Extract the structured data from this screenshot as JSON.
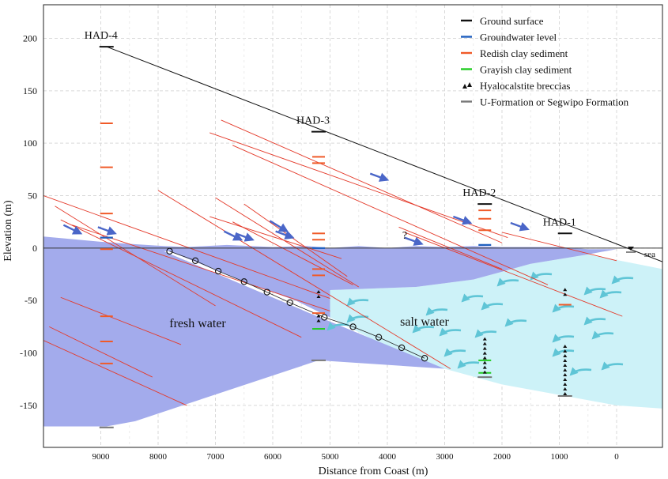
{
  "axes": {
    "x_label": "Distance from Coast (m)",
    "y_label": "Elevation (m)",
    "x_ticks": [
      9000,
      8000,
      7000,
      6000,
      5000,
      4000,
      3000,
      2000,
      1000,
      0
    ],
    "y_ticks": [
      200,
      150,
      100,
      50,
      0,
      -50,
      -100,
      -150
    ],
    "x_range": [
      10000,
      -800
    ],
    "y_range": [
      -190,
      232
    ]
  },
  "legend": {
    "items": [
      {
        "label": "Ground surface",
        "kind": "line",
        "color": "#111111"
      },
      {
        "label": "Groundwater level",
        "kind": "line",
        "color": "#1f5fbf"
      },
      {
        "label": "Redish clay sediment",
        "kind": "line",
        "color": "#f05a28"
      },
      {
        "label": "Grayish clay sediment",
        "kind": "line",
        "color": "#22cc22"
      },
      {
        "label": "Hyalocalstite breccias",
        "kind": "breccia",
        "color": "#111111"
      },
      {
        "label": "U-Formation or Segwipo Formation",
        "kind": "line",
        "color": "#777777"
      }
    ]
  },
  "colors": {
    "fresh_water": "#a3abec",
    "salt_water": "#cdf2f8",
    "ground": "#111111",
    "clay_red": "#f05a28",
    "clay_green": "#22cc22",
    "gw": "#1f5fbf",
    "formation": "#777777",
    "flow_arrow": "#4a66c8",
    "salt_arrow": "#5fc5d6",
    "red_line": "#e43a2a"
  },
  "wells": [
    {
      "name": "HAD-4",
      "x": 8900,
      "ground": 192,
      "bottom": -171,
      "red": [
        119,
        77,
        33,
        10,
        -1,
        -65,
        -89,
        -110
      ],
      "green": [],
      "gw": [
        10
      ],
      "breccia": []
    },
    {
      "name": "HAD-3",
      "x": 5200,
      "ground": 111,
      "bottom": -107,
      "red": [
        87,
        81,
        14,
        8,
        -20,
        -26,
        -62
      ],
      "green": [
        -77
      ],
      "gw": [
        0
      ],
      "breccia": [
        [
          -40,
          -48
        ],
        [
          -63,
          -69
        ]
      ]
    },
    {
      "name": "HAD-2",
      "x": 2300,
      "ground": 42,
      "bottom": -123,
      "red": [
        36,
        28,
        17
      ],
      "green": [
        -107,
        -119
      ],
      "gw": [
        3
      ],
      "breccia": [
        [
          -85,
          -120
        ]
      ]
    },
    {
      "name": "HAD-1",
      "x": 900,
      "ground": 14,
      "bottom": -141,
      "red": [
        -54
      ],
      "green": [],
      "gw": [],
      "breccia": [
        [
          -38,
          -47
        ],
        [
          -92,
          -138
        ]
      ]
    }
  ],
  "regions": {
    "fresh_label": "fresh water",
    "salt_label": "salt water",
    "sea_label": "sea",
    "question": "?"
  },
  "interface": [
    [
      7800,
      -3
    ],
    [
      7350,
      -12
    ],
    [
      6950,
      -22
    ],
    [
      6500,
      -32
    ],
    [
      6100,
      -42
    ],
    [
      5700,
      -52
    ],
    [
      5100,
      -66
    ],
    [
      4600,
      -75
    ],
    [
      4150,
      -85
    ],
    [
      3750,
      -95
    ],
    [
      3350,
      -105
    ]
  ],
  "fault_lines": [
    [
      [
        10000,
        50
      ],
      [
        5000,
        -48
      ]
    ],
    [
      [
        9800,
        40
      ],
      [
        7000,
        -55
      ]
    ],
    [
      [
        9700,
        27
      ],
      [
        5500,
        -85
      ]
    ],
    [
      [
        9500,
        22
      ],
      [
        5000,
        -60
      ]
    ],
    [
      [
        9700,
        -47
      ],
      [
        7600,
        -92
      ]
    ],
    [
      [
        9900,
        -75
      ],
      [
        8100,
        -123
      ]
    ],
    [
      [
        10000,
        -88
      ],
      [
        7500,
        -150
      ]
    ],
    [
      [
        8000,
        55
      ],
      [
        2900,
        -115
      ]
    ],
    [
      [
        7000,
        48
      ],
      [
        4500,
        -37
      ]
    ],
    [
      [
        6500,
        42
      ],
      [
        4700,
        -27
      ]
    ],
    [
      [
        6700,
        25
      ],
      [
        4600,
        -35
      ]
    ],
    [
      [
        7100,
        30
      ],
      [
        4800,
        -10
      ]
    ],
    [
      [
        7100,
        110
      ],
      [
        1900,
        10
      ]
    ],
    [
      [
        6900,
        122
      ],
      [
        2000,
        5
      ]
    ],
    [
      [
        6700,
        98
      ],
      [
        1200,
        -35
      ]
    ],
    [
      [
        3800,
        20
      ],
      [
        2000,
        -20
      ]
    ],
    [
      [
        3700,
        15
      ],
      [
        -100,
        -65
      ]
    ],
    [
      [
        2000,
        15
      ],
      [
        0,
        -12
      ]
    ]
  ],
  "flow_arrows": [
    [
      [
        9650,
        22
      ],
      [
        9350,
        14
      ]
    ],
    [
      [
        9050,
        20
      ],
      [
        8750,
        14
      ]
    ],
    [
      [
        6850,
        16
      ],
      [
        6550,
        8
      ]
    ],
    [
      [
        6650,
        14
      ],
      [
        6350,
        8
      ]
    ],
    [
      [
        6050,
        26
      ],
      [
        5750,
        16
      ]
    ],
    [
      [
        5950,
        16
      ],
      [
        5650,
        10
      ]
    ],
    [
      [
        4300,
        71
      ],
      [
        4000,
        65
      ]
    ],
    [
      [
        3700,
        10
      ],
      [
        3400,
        4
      ]
    ],
    [
      [
        2850,
        30
      ],
      [
        2550,
        24
      ]
    ],
    [
      [
        1850,
        24
      ],
      [
        1550,
        18
      ]
    ]
  ]
}
